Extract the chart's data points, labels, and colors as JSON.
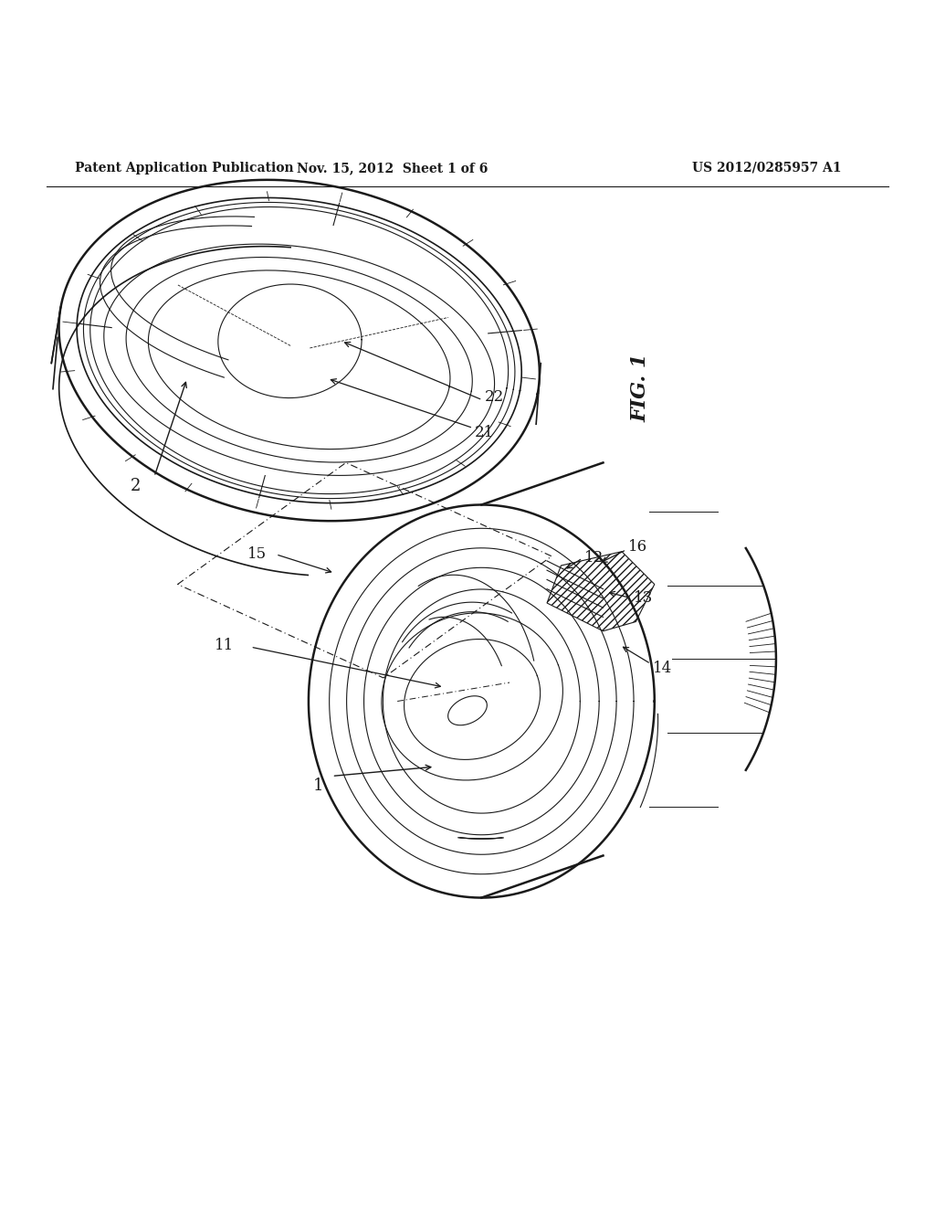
{
  "title": "",
  "background_color": "#ffffff",
  "header_text": "Patent Application Publication",
  "header_date": "Nov. 15, 2012  Sheet 1 of 6",
  "header_patent": "US 2012/0285957 A1",
  "fig_label": "FIG. 1"
}
